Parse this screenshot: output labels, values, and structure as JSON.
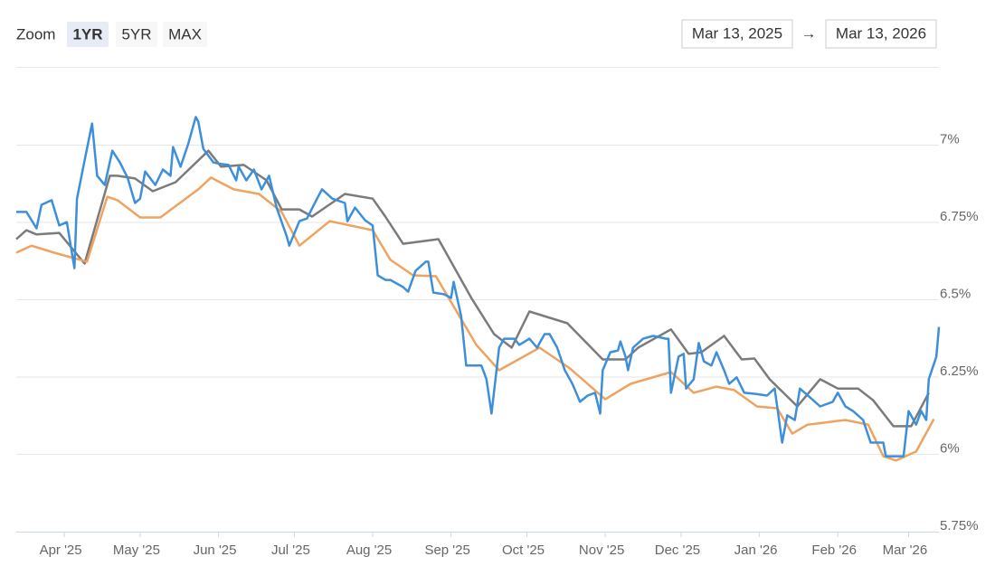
{
  "range_selector": {
    "label": "Zoom",
    "buttons": [
      "1YR",
      "5YR",
      "MAX"
    ],
    "selected": 0,
    "from": "Mar 13, 2025",
    "separator": "→",
    "to": "Mar 13, 2026"
  },
  "chart_data": {
    "type": "line",
    "xlim": [
      "2025-03-13",
      "2026-03-13"
    ],
    "xticks": [
      {
        "value": "2025-04-01",
        "label": "Apr '25"
      },
      {
        "value": "2025-05-01",
        "label": "May '25"
      },
      {
        "value": "2025-06-01",
        "label": "Jun '25"
      },
      {
        "value": "2025-07-01",
        "label": "Jul '25"
      },
      {
        "value": "2025-08-01",
        "label": "Aug '25"
      },
      {
        "value": "2025-09-01",
        "label": "Sep '25"
      },
      {
        "value": "2025-10-01",
        "label": "Oct '25"
      },
      {
        "value": "2025-11-01",
        "label": "Nov '25"
      },
      {
        "value": "2025-12-01",
        "label": "Dec '25"
      },
      {
        "value": "2026-01-01",
        "label": "Jan '26"
      },
      {
        "value": "2026-02-01",
        "label": "Feb '26"
      },
      {
        "value": "2026-03-01",
        "label": "Mar '26"
      }
    ],
    "ylim": [
      5.75,
      7.25
    ],
    "yticks": [
      {
        "value": 5.75,
        "label": "5.75%"
      },
      {
        "value": 6,
        "label": "6%"
      },
      {
        "value": 6.25,
        "label": "6.25%"
      },
      {
        "value": 6.5,
        "label": "6.5%"
      },
      {
        "value": 6.75,
        "label": "6.75%"
      },
      {
        "value": 7,
        "label": "7%"
      }
    ],
    "grid": true,
    "series": [
      {
        "color": "#3d8fd9",
        "x": [
          "2025-03-13",
          "2025-03-17",
          "2025-03-21",
          "2025-03-23",
          "2025-03-27",
          "2025-03-30",
          "2025-04-02",
          "2025-04-05",
          "2025-04-06",
          "2025-04-09",
          "2025-04-12",
          "2025-04-14",
          "2025-04-17",
          "2025-04-20",
          "2025-04-23",
          "2025-04-26",
          "2025-04-29",
          "2025-05-01",
          "2025-05-03",
          "2025-05-07",
          "2025-05-10",
          "2025-05-13",
          "2025-05-14",
          "2025-05-17",
          "2025-05-20",
          "2025-05-23",
          "2025-05-24",
          "2025-05-26",
          "2025-05-30",
          "2025-06-02",
          "2025-06-05",
          "2025-06-08",
          "2025-06-09",
          "2025-06-12",
          "2025-06-15",
          "2025-06-18",
          "2025-06-21",
          "2025-06-24",
          "2025-06-28",
          "2025-06-29",
          "2025-07-03",
          "2025-07-06",
          "2025-07-10",
          "2025-07-12",
          "2025-07-16",
          "2025-07-21",
          "2025-07-22",
          "2025-07-25",
          "2025-07-29",
          "2025-08-01",
          "2025-08-03",
          "2025-08-06",
          "2025-08-08",
          "2025-08-13",
          "2025-08-15",
          "2025-08-18",
          "2025-08-22",
          "2025-08-23",
          "2025-08-25",
          "2025-08-29",
          "2025-09-01",
          "2025-09-02",
          "2025-09-05",
          "2025-09-07",
          "2025-09-13",
          "2025-09-15",
          "2025-09-17",
          "2025-09-20",
          "2025-09-22",
          "2025-09-26",
          "2025-09-28",
          "2025-10-02",
          "2025-10-05",
          "2025-10-08",
          "2025-10-10",
          "2025-10-13",
          "2025-10-16",
          "2025-10-19",
          "2025-10-22",
          "2025-10-25",
          "2025-10-28",
          "2025-10-30",
          "2025-10-31",
          "2025-11-03",
          "2025-11-06",
          "2025-11-07",
          "2025-11-09",
          "2025-11-10",
          "2025-11-12",
          "2025-11-16",
          "2025-11-20",
          "2025-11-25",
          "2025-11-26",
          "2025-11-27",
          "2025-11-30",
          "2025-12-02",
          "2025-12-03",
          "2025-12-06",
          "2025-12-08",
          "2025-12-10",
          "2025-12-13",
          "2025-12-15",
          "2025-12-18",
          "2025-12-20",
          "2025-12-23",
          "2025-12-26",
          "2025-12-30",
          "2026-01-04",
          "2026-01-07",
          "2026-01-08",
          "2026-01-10",
          "2026-01-12",
          "2026-01-15",
          "2026-01-17",
          "2026-01-21",
          "2026-01-25",
          "2026-01-30",
          "2026-02-01",
          "2026-02-04",
          "2026-02-07",
          "2026-02-11",
          "2026-02-14",
          "2026-02-19",
          "2026-02-20",
          "2026-02-23",
          "2026-02-27",
          "2026-03-01",
          "2026-03-04",
          "2026-03-06",
          "2026-03-08",
          "2026-03-09",
          "2026-03-12",
          "2026-03-13"
        ],
        "values": [
          6.784,
          6.784,
          6.731,
          6.807,
          6.822,
          6.74,
          6.751,
          6.602,
          6.827,
          6.95,
          7.07,
          6.901,
          6.871,
          6.982,
          6.944,
          6.895,
          6.813,
          6.827,
          6.915,
          6.871,
          6.921,
          6.901,
          6.994,
          6.93,
          7.003,
          7.091,
          7.076,
          6.988,
          6.944,
          6.939,
          6.936,
          6.886,
          6.93,
          6.886,
          6.921,
          6.857,
          6.901,
          6.798,
          6.705,
          6.675,
          6.754,
          6.763,
          6.827,
          6.857,
          6.827,
          6.813,
          6.754,
          6.798,
          6.757,
          6.74,
          6.579,
          6.564,
          6.564,
          6.541,
          6.526,
          6.594,
          6.623,
          6.623,
          6.523,
          6.518,
          6.506,
          6.558,
          6.447,
          6.287,
          6.287,
          6.243,
          6.132,
          6.345,
          6.374,
          6.374,
          6.354,
          6.374,
          6.345,
          6.389,
          6.389,
          6.345,
          6.272,
          6.228,
          6.17,
          6.19,
          6.199,
          6.132,
          6.272,
          6.33,
          6.336,
          6.365,
          6.316,
          6.272,
          6.345,
          6.374,
          6.383,
          6.374,
          6.374,
          6.199,
          6.316,
          6.325,
          6.213,
          6.243,
          6.36,
          6.301,
          6.287,
          6.33,
          6.272,
          6.228,
          6.249,
          6.199,
          6.196,
          6.19,
          6.213,
          6.155,
          6.038,
          6.126,
          6.111,
          6.213,
          6.184,
          6.155,
          6.17,
          6.199,
          6.155,
          6.14,
          6.111,
          6.038,
          6.038,
          5.994,
          5.994,
          5.994,
          6.14,
          6.096,
          6.14,
          6.111,
          6.243,
          6.316,
          6.412
        ]
      },
      {
        "color": "#7b7b7b",
        "x": [
          "2025-03-13",
          "2025-03-17",
          "2025-03-21",
          "2025-03-30",
          "2025-04-09",
          "2025-04-19",
          "2025-04-22",
          "2025-04-29",
          "2025-05-06",
          "2025-05-15",
          "2025-05-28",
          "2025-06-02",
          "2025-06-11",
          "2025-06-20",
          "2025-06-26",
          "2025-07-03",
          "2025-07-08",
          "2025-07-21",
          "2025-08-01",
          "2025-08-06",
          "2025-08-13",
          "2025-08-27",
          "2025-09-09",
          "2025-09-18",
          "2025-09-25",
          "2025-10-02",
          "2025-10-17",
          "2025-10-31",
          "2025-11-09",
          "2025-11-14",
          "2025-11-27",
          "2025-12-04",
          "2025-12-09",
          "2025-12-18",
          "2025-12-25",
          "2025-12-30",
          "2026-01-05",
          "2026-01-16",
          "2026-01-25",
          "2026-02-01",
          "2026-02-09",
          "2026-02-15",
          "2026-02-23",
          "2026-03-02",
          "2026-03-09"
        ],
        "values": [
          6.696,
          6.725,
          6.711,
          6.716,
          6.617,
          6.901,
          6.901,
          6.892,
          6.851,
          6.88,
          6.982,
          6.93,
          6.936,
          6.886,
          6.792,
          6.792,
          6.769,
          6.842,
          6.827,
          6.769,
          6.681,
          6.696,
          6.506,
          6.389,
          6.345,
          6.462,
          6.424,
          6.307,
          6.307,
          6.345,
          6.404,
          6.325,
          6.33,
          6.383,
          6.307,
          6.31,
          6.243,
          6.155,
          6.243,
          6.213,
          6.213,
          6.175,
          6.091,
          6.091,
          6.199
        ]
      },
      {
        "color": "#eea35f",
        "x": [
          "2025-03-13",
          "2025-03-19",
          "2025-03-28",
          "2025-04-10",
          "2025-04-18",
          "2025-04-22",
          "2025-05-01",
          "2025-05-09",
          "2025-05-24",
          "2025-05-29",
          "2025-06-07",
          "2025-06-17",
          "2025-06-26",
          "2025-07-03",
          "2025-07-15",
          "2025-08-01",
          "2025-08-08",
          "2025-08-17",
          "2025-08-26",
          "2025-09-11",
          "2025-09-20",
          "2025-10-06",
          "2025-10-18",
          "2025-11-01",
          "2025-11-11",
          "2025-11-27",
          "2025-12-06",
          "2025-12-15",
          "2025-12-22",
          "2025-12-31",
          "2026-01-08",
          "2026-01-14",
          "2026-01-20",
          "2026-02-04",
          "2026-02-13",
          "2026-02-19",
          "2026-02-24",
          "2026-03-04",
          "2026-03-11"
        ],
        "values": [
          6.652,
          6.675,
          6.652,
          6.623,
          6.833,
          6.822,
          6.766,
          6.766,
          6.857,
          6.895,
          6.857,
          6.842,
          6.784,
          6.675,
          6.754,
          6.725,
          6.629,
          6.579,
          6.576,
          6.354,
          6.272,
          6.345,
          6.278,
          6.178,
          6.228,
          6.266,
          6.199,
          6.219,
          6.208,
          6.155,
          6.149,
          6.067,
          6.096,
          6.111,
          6.096,
          5.994,
          5.98,
          6.009,
          6.114
        ]
      }
    ]
  }
}
